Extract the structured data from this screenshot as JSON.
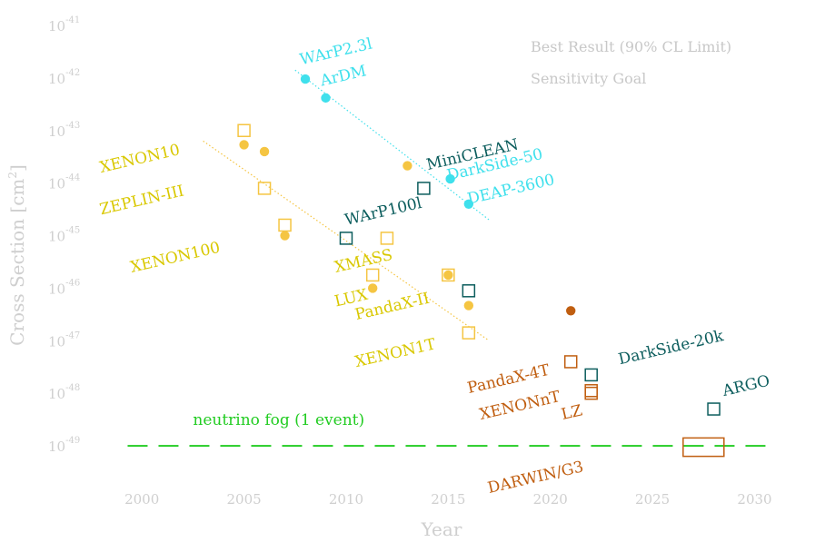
{
  "colors": {
    "xenon": "#f5c542",
    "xenon_label": "#d9c800",
    "argon_cyan": "#3fe0ec",
    "argon_dark": "#0c5d5d",
    "future": "#c05e10",
    "neutrino": "#22cc22",
    "axis_text": "#cfcfcf"
  },
  "legend": {
    "items": [
      {
        "label": "Best Result (90% CL Limit)",
        "marker": "filled-circle"
      },
      {
        "label": "Sensitivity Goal",
        "marker": "open-square"
      }
    ]
  },
  "chart_data": {
    "type": "scatter",
    "xlabel": "Year",
    "ylabel": "Cross Section [cm",
    "ylabel_sup": "2",
    "ylabel_end": "]",
    "xlim": [
      1997.5,
      2031
    ],
    "ylim": [
      -49.5,
      -41
    ],
    "yscale": "log",
    "x_ticks": [
      2000,
      2005,
      2010,
      2015,
      2020,
      2025,
      2030
    ],
    "y_ticks": [
      {
        "base": "10",
        "exp": "-41",
        "value": -41
      },
      {
        "base": "10",
        "exp": "-42",
        "value": -42
      },
      {
        "base": "10",
        "exp": "-43",
        "value": -43
      },
      {
        "base": "10",
        "exp": "-44",
        "value": -44
      },
      {
        "base": "10",
        "exp": "-45",
        "value": -45
      },
      {
        "base": "10",
        "exp": "-46",
        "value": -46
      },
      {
        "base": "10",
        "exp": "-47",
        "value": -47
      },
      {
        "base": "10",
        "exp": "-48",
        "value": -48
      },
      {
        "base": "10",
        "exp": "-49",
        "value": -49
      }
    ],
    "series": [
      {
        "name": "Best Result (90% CL Limit)",
        "marker": "circle",
        "points": [
          {
            "x": 2008.0,
            "y": -42.02,
            "color": "argon_cyan"
          },
          {
            "x": 2009.0,
            "y": -42.38,
            "color": "argon_cyan"
          },
          {
            "x": 2015.1,
            "y": -43.92,
            "color": "argon_cyan"
          },
          {
            "x": 2016.0,
            "y": -44.4,
            "color": "argon_cyan"
          },
          {
            "x": 2005.0,
            "y": -43.27,
            "color": "xenon"
          },
          {
            "x": 2006.0,
            "y": -43.4,
            "color": "xenon"
          },
          {
            "x": 2013.0,
            "y": -43.67,
            "color": "xenon"
          },
          {
            "x": 2007.0,
            "y": -45.0,
            "color": "xenon"
          },
          {
            "x": 2011.3,
            "y": -46.0,
            "color": "xenon"
          },
          {
            "x": 2015.0,
            "y": -45.75,
            "color": "xenon"
          },
          {
            "x": 2016.0,
            "y": -46.33,
            "color": "xenon"
          },
          {
            "x": 2021.0,
            "y": -46.43,
            "color": "future"
          }
        ]
      },
      {
        "name": "Sensitivity Goal",
        "marker": "square",
        "points": [
          {
            "x": 2005.0,
            "y": -43.0,
            "color": "xenon"
          },
          {
            "x": 2006.0,
            "y": -44.1,
            "color": "xenon"
          },
          {
            "x": 2007.0,
            "y": -44.8,
            "color": "xenon"
          },
          {
            "x": 2012.0,
            "y": -45.05,
            "color": "xenon"
          },
          {
            "x": 2011.3,
            "y": -45.75,
            "color": "xenon"
          },
          {
            "x": 2015.0,
            "y": -45.75,
            "color": "xenon"
          },
          {
            "x": 2016.0,
            "y": -46.85,
            "color": "xenon"
          },
          {
            "x": 2013.8,
            "y": -44.1,
            "color": "argon_dark"
          },
          {
            "x": 2010.0,
            "y": -45.05,
            "color": "argon_dark"
          },
          {
            "x": 2016.0,
            "y": -46.05,
            "color": "argon_dark"
          },
          {
            "x": 2021.0,
            "y": -47.4,
            "color": "future"
          },
          {
            "x": 2022.0,
            "y": -47.95,
            "color": "future"
          },
          {
            "x": 2022.0,
            "y": -48.0,
            "color": "future"
          },
          {
            "x": 2022.0,
            "y": -47.65,
            "color": "argon_dark"
          },
          {
            "x": 2028.0,
            "y": -48.3,
            "color": "argon_dark"
          }
        ]
      }
    ],
    "ranges": [
      {
        "label": "DARWIN/G3",
        "x0": 2026.5,
        "x1": 2028.5,
        "y0": -48.85,
        "y1": -49.2,
        "color": "future"
      }
    ],
    "trend_lines": [
      {
        "color": "xenon",
        "x0": 2003.0,
        "y0": -43.2,
        "x1": 2017.0,
        "y1": -47.0
      },
      {
        "color": "argon_cyan",
        "x0": 2007.5,
        "y0": -41.85,
        "x1": 2017.0,
        "y1": -44.7
      }
    ],
    "neutrino_fog": {
      "label": "neutrino fog (1 event)",
      "y": -49.0
    }
  },
  "point_labels": [
    {
      "text": "WArP2.3l",
      "x": 2007.8,
      "y": -41.75,
      "angle": -13,
      "color": "argon_cyan"
    },
    {
      "text": "ArDM",
      "x": 2008.8,
      "y": -42.15,
      "angle": -13,
      "color": "argon_cyan"
    },
    {
      "text": "MiniCLEAN",
      "x": 2014.0,
      "y": -43.75,
      "angle": -13,
      "color": "argon_dark"
    },
    {
      "text": "DarkSide-50",
      "x": 2015.0,
      "y": -43.95,
      "angle": -13,
      "color": "argon_cyan"
    },
    {
      "text": "DEAP-3600",
      "x": 2016.0,
      "y": -44.4,
      "angle": -13,
      "color": "argon_cyan"
    },
    {
      "text": "WArP100l",
      "x": 2010.0,
      "y": -44.8,
      "angle": -13,
      "color": "argon_dark"
    },
    {
      "text": "XENON10",
      "x": 1998.0,
      "y": -43.8,
      "angle": -13,
      "color": "xenon_label"
    },
    {
      "text": "ZEPLIN-III",
      "x": 1998.0,
      "y": -44.6,
      "angle": -13,
      "color": "xenon_label"
    },
    {
      "text": "XENON100",
      "x": 1999.5,
      "y": -45.7,
      "angle": -13,
      "color": "xenon_label"
    },
    {
      "text": "XMASS",
      "x": 2009.5,
      "y": -45.7,
      "angle": -13,
      "color": "xenon_label"
    },
    {
      "text": "LUX",
      "x": 2009.5,
      "y": -46.35,
      "angle": -13,
      "color": "xenon_label"
    },
    {
      "text": "PandaX-II",
      "x": 2010.5,
      "y": -46.6,
      "angle": -13,
      "color": "xenon_label"
    },
    {
      "text": "XENON1T",
      "x": 2010.5,
      "y": -47.5,
      "angle": -13,
      "color": "xenon_label"
    },
    {
      "text": "PandaX-4T",
      "x": 2016.0,
      "y": -48.0,
      "angle": -13,
      "color": "future"
    },
    {
      "text": "XENONnT",
      "x": 2016.6,
      "y": -48.5,
      "angle": -13,
      "color": "future"
    },
    {
      "text": "LZ",
      "x": 2020.6,
      "y": -48.5,
      "angle": -13,
      "color": "future"
    },
    {
      "text": "DarkSide-20k",
      "x": 2023.4,
      "y": -47.45,
      "angle": -13,
      "color": "argon_dark"
    },
    {
      "text": "ARGO",
      "x": 2028.5,
      "y": -48.05,
      "angle": -13,
      "color": "argon_dark"
    },
    {
      "text": "DARWIN/G3",
      "x": 2017.0,
      "y": -49.9,
      "angle": -13,
      "color": "future"
    },
    {
      "text": "neutrino fog (1 event)",
      "x": 2002.5,
      "y": -48.6,
      "angle": 0,
      "color": "neutrino"
    }
  ]
}
